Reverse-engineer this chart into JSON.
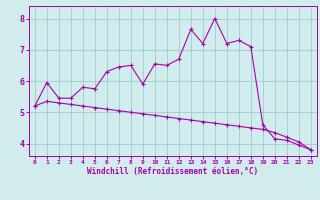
{
  "xlabel": "Windchill (Refroidissement éolien,°C)",
  "background_color": "#d0ecec",
  "grid_color": "#a0cccc",
  "line_color": "#aa00aa",
  "spine_color": "#aa00aa",
  "xlim": [
    -0.5,
    23.5
  ],
  "ylim": [
    3.6,
    8.4
  ],
  "xticks": [
    0,
    1,
    2,
    3,
    4,
    5,
    6,
    7,
    8,
    9,
    10,
    11,
    12,
    13,
    14,
    15,
    16,
    17,
    18,
    19,
    20,
    21,
    22,
    23
  ],
  "yticks": [
    4,
    5,
    6,
    7,
    8
  ],
  "line1_x": [
    0,
    1,
    2,
    3,
    4,
    5,
    6,
    7,
    8,
    9,
    10,
    11,
    12,
    13,
    14,
    15,
    16,
    17,
    18,
    19,
    20,
    21,
    22,
    23
  ],
  "line1_y": [
    5.2,
    5.95,
    5.45,
    5.45,
    5.8,
    5.75,
    6.3,
    6.45,
    6.5,
    5.9,
    6.55,
    6.5,
    6.7,
    7.65,
    7.2,
    8.0,
    7.2,
    7.3,
    7.1,
    4.6,
    4.15,
    4.1,
    3.95,
    3.8
  ],
  "line2_x": [
    0,
    1,
    2,
    3,
    4,
    5,
    6,
    7,
    8,
    9,
    10,
    11,
    12,
    13,
    14,
    15,
    16,
    17,
    18,
    19,
    20,
    21,
    22,
    23
  ],
  "line2_y": [
    5.2,
    5.35,
    5.3,
    5.25,
    5.2,
    5.15,
    5.1,
    5.05,
    5.0,
    4.95,
    4.9,
    4.85,
    4.8,
    4.75,
    4.7,
    4.65,
    4.6,
    4.55,
    4.5,
    4.45,
    4.35,
    4.2,
    4.05,
    3.8
  ],
  "marker": "+",
  "markersize": 3,
  "markeredgewidth": 0.8,
  "linewidth": 0.8,
  "xlabel_fontsize": 5.5,
  "xlabel_fontweight": "bold",
  "xtick_fontsize": 4.5,
  "ytick_fontsize": 6,
  "tick_fontweight": "bold"
}
